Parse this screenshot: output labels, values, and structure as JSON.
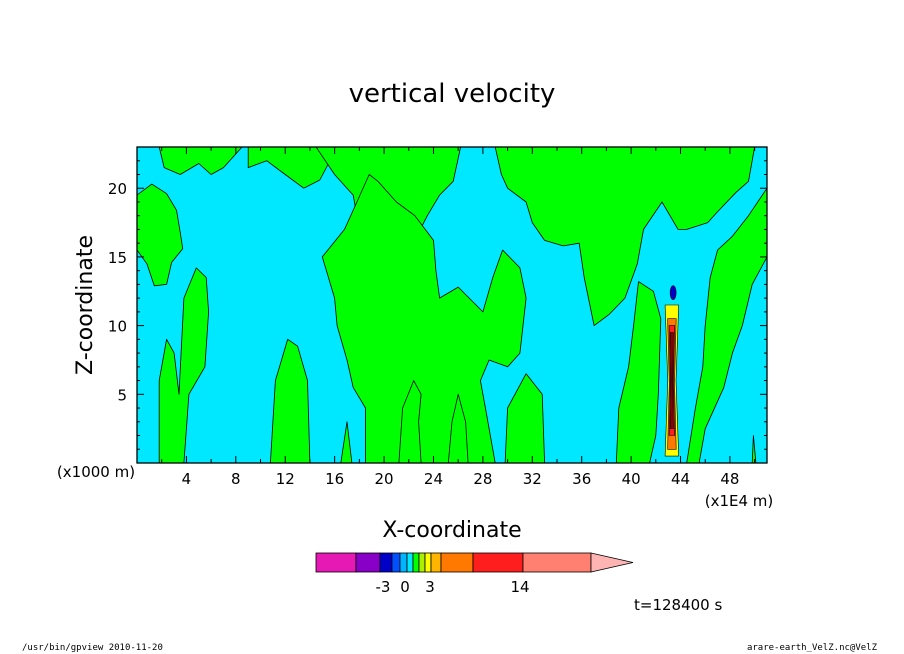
{
  "chart_data": {
    "type": "heatmap",
    "title": "vertical velocity",
    "xlabel": "X-coordinate",
    "ylabel": "Z-coordinate",
    "x_unit_left": "(x1000 m)",
    "x_unit_right": "(x1E4 m)",
    "xlim": [
      0,
      51
    ],
    "ylim": [
      0,
      23
    ],
    "x_ticks": [
      "4",
      "8",
      "12",
      "16",
      "20",
      "24",
      "28",
      "32",
      "36",
      "40",
      "44",
      "48"
    ],
    "y_ticks": [
      "5",
      "10",
      "15",
      "20"
    ],
    "grid": false,
    "background_color": "#00e8ff",
    "positive_color": "#00ff00",
    "regions": [
      {
        "level": "positive",
        "polygon": [
          [
            0,
            23
          ],
          [
            1.8,
            23
          ],
          [
            2.2,
            21.5
          ],
          [
            3.5,
            21
          ],
          [
            5,
            21.8
          ],
          [
            6,
            21
          ],
          [
            7,
            21.5
          ],
          [
            8.5,
            23
          ],
          [
            0,
            23
          ]
        ]
      },
      {
        "level": "positive",
        "polygon": [
          [
            0,
            19.5
          ],
          [
            1.2,
            20.3
          ],
          [
            2.4,
            19.6
          ],
          [
            3.2,
            18.4
          ],
          [
            3.5,
            16.8
          ],
          [
            3.7,
            15.6
          ],
          [
            2.8,
            14.6
          ],
          [
            2.4,
            13
          ],
          [
            1.4,
            12.9
          ],
          [
            0.8,
            14.5
          ],
          [
            0,
            15.5
          ]
        ]
      },
      {
        "level": "positive",
        "polygon": [
          [
            9,
            21.5
          ],
          [
            10.5,
            22
          ],
          [
            12,
            21
          ],
          [
            13.5,
            20
          ],
          [
            14.8,
            20.6
          ],
          [
            15.5,
            21.8
          ],
          [
            15,
            23
          ],
          [
            9,
            23
          ]
        ]
      },
      {
        "level": "positive",
        "polygon": [
          [
            1.8,
            0
          ],
          [
            1.8,
            6
          ],
          [
            2.4,
            9
          ],
          [
            3,
            8
          ],
          [
            3.4,
            5
          ],
          [
            3.8,
            12
          ],
          [
            4.8,
            14.2
          ],
          [
            5.6,
            13.5
          ],
          [
            5.8,
            11
          ],
          [
            5.5,
            7
          ],
          [
            4.2,
            5
          ],
          [
            3.8,
            0
          ]
        ]
      },
      {
        "level": "positive",
        "polygon": [
          [
            10.8,
            0
          ],
          [
            11.2,
            6
          ],
          [
            12.2,
            9
          ],
          [
            13,
            8.5
          ],
          [
            13.8,
            6
          ],
          [
            14,
            0
          ]
        ]
      },
      {
        "level": "positive",
        "polygon": [
          [
            16.5,
            0
          ],
          [
            17,
            3
          ],
          [
            17.4,
            0
          ]
        ]
      },
      {
        "level": "positive",
        "polygon": [
          [
            14.5,
            23
          ],
          [
            16,
            21
          ],
          [
            17.5,
            19.5
          ],
          [
            18,
            17
          ],
          [
            20,
            15.2
          ],
          [
            21.5,
            14.5
          ],
          [
            23.5,
            18
          ],
          [
            24.5,
            19.5
          ],
          [
            25.6,
            20.5
          ],
          [
            26.2,
            23
          ]
        ]
      },
      {
        "level": "positive",
        "polygon": [
          [
            15,
            15
          ],
          [
            16.8,
            17
          ],
          [
            17.8,
            19
          ],
          [
            18.8,
            21
          ],
          [
            19.5,
            20.5
          ],
          [
            21,
            19
          ],
          [
            22.5,
            18
          ],
          [
            24,
            16.2
          ],
          [
            24.2,
            14
          ],
          [
            24.5,
            12
          ],
          [
            26,
            12.8
          ],
          [
            28,
            11
          ],
          [
            28.8,
            13.5
          ],
          [
            29.6,
            15.5
          ],
          [
            31,
            14.2
          ],
          [
            31.5,
            12
          ],
          [
            31,
            8
          ],
          [
            30,
            7
          ],
          [
            28.5,
            7.5
          ],
          [
            27.8,
            6
          ],
          [
            28.2,
            4
          ],
          [
            29,
            0
          ],
          [
            18.5,
            0
          ],
          [
            18.5,
            4
          ],
          [
            17.5,
            5.5
          ],
          [
            17,
            7.5
          ],
          [
            16.2,
            10
          ],
          [
            16,
            12
          ],
          [
            15,
            15
          ]
        ]
      },
      {
        "level": "positive",
        "polygon": [
          [
            21.2,
            0
          ],
          [
            21.5,
            4
          ],
          [
            22.4,
            6
          ],
          [
            23,
            5
          ],
          [
            22.8,
            3
          ],
          [
            23,
            0
          ]
        ]
      },
      {
        "level": "positive",
        "polygon": [
          [
            25.2,
            0
          ],
          [
            25.5,
            3
          ],
          [
            26,
            5
          ],
          [
            26.6,
            3
          ],
          [
            26.8,
            0
          ]
        ]
      },
      {
        "level": "positive",
        "polygon": [
          [
            29.8,
            0
          ],
          [
            30,
            4
          ],
          [
            31.5,
            6.5
          ],
          [
            32.8,
            5
          ],
          [
            33,
            0
          ]
        ]
      },
      {
        "level": "positive",
        "polygon": [
          [
            29,
            23
          ],
          [
            29.5,
            21
          ],
          [
            30,
            20
          ],
          [
            31.5,
            19
          ],
          [
            32,
            17.5
          ],
          [
            33,
            16.2
          ],
          [
            34.5,
            15.8
          ],
          [
            35.8,
            16
          ],
          [
            36.2,
            13.5
          ],
          [
            37,
            10
          ],
          [
            38.2,
            10.8
          ],
          [
            39.5,
            12
          ],
          [
            40.5,
            14.5
          ],
          [
            41,
            17
          ],
          [
            42.5,
            19
          ],
          [
            43.8,
            17
          ],
          [
            44.5,
            17
          ],
          [
            46.2,
            17.5
          ],
          [
            47,
            18.3
          ],
          [
            48.5,
            19.7
          ],
          [
            49.5,
            20.5
          ],
          [
            50,
            23
          ]
        ]
      },
      {
        "level": "positive",
        "polygon": [
          [
            38.8,
            0
          ],
          [
            39,
            4
          ],
          [
            39.8,
            7
          ],
          [
            40.2,
            10
          ],
          [
            40.6,
            13.2
          ],
          [
            41.8,
            12.5
          ],
          [
            42.4,
            10.5
          ],
          [
            42.2,
            5
          ],
          [
            42,
            2
          ],
          [
            41.5,
            0
          ]
        ]
      },
      {
        "level": "positive",
        "polygon": [
          [
            44.5,
            0
          ],
          [
            45.2,
            4
          ],
          [
            45.8,
            7
          ],
          [
            46,
            10
          ],
          [
            46.4,
            13.5
          ],
          [
            47,
            15.5
          ],
          [
            48.2,
            16.5
          ],
          [
            49.5,
            18
          ],
          [
            51,
            20
          ],
          [
            51,
            15
          ],
          [
            49.8,
            13
          ],
          [
            49,
            10
          ],
          [
            48.2,
            8
          ],
          [
            47.5,
            5.5
          ],
          [
            46,
            2.5
          ],
          [
            45.5,
            0
          ]
        ]
      },
      {
        "level": "positive",
        "polygon": [
          [
            49.8,
            0
          ],
          [
            49.9,
            2
          ],
          [
            50.1,
            0
          ]
        ]
      }
    ],
    "colorbar": {
      "tick_labels": [
        "-3",
        "0",
        "3",
        "14"
      ],
      "colors": [
        "#e619b4",
        "#8800c8",
        "#0000c8",
        "#0050ff",
        "#00b4ff",
        "#00e8ff",
        "#00ff00",
        "#aaf000",
        "#ffff00",
        "#ffb400",
        "#ff7800",
        "#ff1e1e",
        "#ff8070",
        "#ffb4b4"
      ]
    },
    "time_label": "t=128400 s",
    "footer_left": "/usr/bin/gpview  2010-11-20",
    "footer_right": "arare-earth_VelZ.nc@VelZ"
  }
}
